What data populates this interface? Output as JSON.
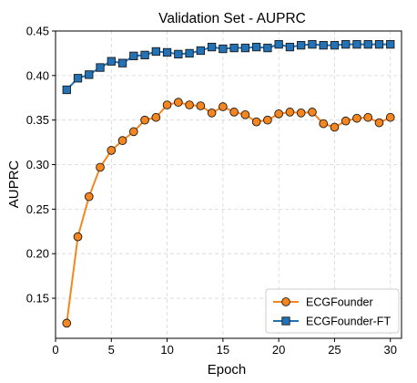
{
  "chart_data": {
    "type": "line",
    "title": "Validation Set - AUPRC",
    "xlabel": "Epoch",
    "ylabel": "AUPRC",
    "xlim": [
      0,
      31
    ],
    "ylim": [
      0.105,
      0.45
    ],
    "xticks": [
      0,
      5,
      10,
      15,
      20,
      25,
      30
    ],
    "yticks": [
      0.15,
      0.2,
      0.25,
      0.3,
      0.35,
      0.4,
      0.45
    ],
    "grid": true,
    "legend_position": "lower-right",
    "x": [
      1,
      2,
      3,
      4,
      5,
      6,
      7,
      8,
      9,
      10,
      11,
      12,
      13,
      14,
      15,
      16,
      17,
      18,
      19,
      20,
      21,
      22,
      23,
      24,
      25,
      26,
      27,
      28,
      29,
      30
    ],
    "series": [
      {
        "name": "ECGFounder",
        "color": "#f5861f",
        "marker": "circle",
        "values": [
          0.122,
          0.219,
          0.264,
          0.297,
          0.316,
          0.327,
          0.337,
          0.35,
          0.353,
          0.367,
          0.37,
          0.367,
          0.366,
          0.358,
          0.365,
          0.359,
          0.356,
          0.348,
          0.35,
          0.357,
          0.359,
          0.358,
          0.359,
          0.346,
          0.342,
          0.349,
          0.352,
          0.353,
          0.347,
          0.353
        ]
      },
      {
        "name": "ECGFounder-FT",
        "color": "#2372b5",
        "marker": "square",
        "values": [
          0.384,
          0.397,
          0.401,
          0.409,
          0.416,
          0.414,
          0.422,
          0.423,
          0.427,
          0.426,
          0.424,
          0.425,
          0.428,
          0.432,
          0.43,
          0.431,
          0.431,
          0.432,
          0.431,
          0.435,
          0.432,
          0.434,
          0.435,
          0.434,
          0.434,
          0.435,
          0.435,
          0.435,
          0.435,
          0.435
        ]
      }
    ]
  }
}
